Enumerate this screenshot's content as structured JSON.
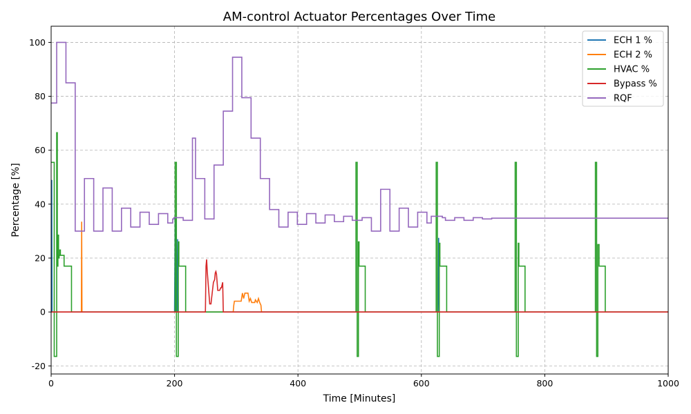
{
  "chart_data": {
    "type": "line",
    "title": "AM-control Actuator Percentages Over Time",
    "xlabel": "Time [Minutes]",
    "ylabel": "Percentage [%]",
    "xlim": [
      0,
      1000
    ],
    "ylim": [
      -23,
      106
    ],
    "x_ticks": [
      0,
      200,
      400,
      600,
      800,
      1000
    ],
    "y_ticks": [
      -20,
      0,
      20,
      40,
      60,
      80,
      100
    ],
    "grid": true,
    "legend_position": "top-right",
    "series": [
      {
        "name": "ECH 1 %",
        "color": "#1f77b4",
        "step": false,
        "points": [
          [
            0,
            0
          ],
          [
            0.5,
            0
          ],
          [
            1,
            49
          ],
          [
            1.5,
            0
          ],
          [
            2,
            0
          ],
          [
            200,
            0
          ],
          [
            201,
            35
          ],
          [
            202,
            0
          ],
          [
            204,
            0
          ],
          [
            205,
            27
          ],
          [
            206,
            0
          ],
          [
            625,
            0
          ],
          [
            627,
            0
          ],
          [
            628,
            27.5
          ],
          [
            629,
            0
          ],
          [
            1000,
            0
          ]
        ]
      },
      {
        "name": "ECH 2 %",
        "color": "#ff7f0e",
        "step": false,
        "points": [
          [
            0,
            0
          ],
          [
            49,
            0
          ],
          [
            49.5,
            33.5
          ],
          [
            50,
            0
          ],
          [
            295,
            0
          ],
          [
            296,
            2.5
          ],
          [
            297,
            4
          ],
          [
            308,
            4
          ],
          [
            310,
            7
          ],
          [
            312,
            5
          ],
          [
            314,
            7
          ],
          [
            319,
            7
          ],
          [
            321,
            4
          ],
          [
            323,
            5
          ],
          [
            325,
            3.5
          ],
          [
            330,
            3.5
          ],
          [
            331,
            4.5
          ],
          [
            334,
            3.5
          ],
          [
            336,
            5
          ],
          [
            338,
            3.5
          ],
          [
            340,
            2.5
          ],
          [
            341,
            0
          ],
          [
            1000,
            0
          ]
        ]
      },
      {
        "name": "HVAC %",
        "color": "#2ca02c",
        "step": true,
        "points": [
          [
            0,
            55.5
          ],
          [
            5,
            -16.5
          ],
          [
            9,
            66.5
          ],
          [
            10,
            17
          ],
          [
            11,
            28.5
          ],
          [
            12,
            20
          ],
          [
            13,
            21
          ],
          [
            14,
            23
          ],
          [
            15,
            21
          ],
          [
            20,
            21
          ],
          [
            21,
            17
          ],
          [
            33,
            0
          ],
          [
            200,
            0
          ],
          [
            201,
            55.5
          ],
          [
            203,
            -16.5
          ],
          [
            206,
            26
          ],
          [
            207,
            17
          ],
          [
            218,
            0
          ],
          [
            493,
            0
          ],
          [
            494,
            55.5
          ],
          [
            496,
            -16.5
          ],
          [
            498,
            26
          ],
          [
            499,
            17
          ],
          [
            509,
            0
          ],
          [
            623,
            0
          ],
          [
            624,
            55.5
          ],
          [
            626,
            -16.5
          ],
          [
            629,
            25.5
          ],
          [
            630,
            17
          ],
          [
            641,
            0
          ],
          [
            751,
            0
          ],
          [
            752,
            55.5
          ],
          [
            754,
            -16.5
          ],
          [
            757,
            25.5
          ],
          [
            758,
            17
          ],
          [
            768,
            0
          ],
          [
            881,
            0
          ],
          [
            882,
            55.5
          ],
          [
            884,
            -16.5
          ],
          [
            886,
            25
          ],
          [
            888,
            17
          ],
          [
            898,
            0
          ],
          [
            1000,
            0
          ]
        ]
      },
      {
        "name": "Bypass %",
        "color": "#d62728",
        "step": false,
        "points": [
          [
            0,
            0
          ],
          [
            250,
            0
          ],
          [
            251,
            17
          ],
          [
            252,
            19.5
          ],
          [
            253,
            15
          ],
          [
            255,
            9
          ],
          [
            257,
            3
          ],
          [
            259,
            3
          ],
          [
            261,
            7
          ],
          [
            263,
            11
          ],
          [
            265,
            12
          ],
          [
            266,
            14.5
          ],
          [
            267,
            15
          ],
          [
            268,
            14
          ],
          [
            269,
            11
          ],
          [
            270,
            8
          ],
          [
            273,
            8
          ],
          [
            275,
            9
          ],
          [
            276,
            9
          ],
          [
            277,
            10
          ],
          [
            278,
            11
          ],
          [
            279,
            0
          ],
          [
            1000,
            0
          ]
        ]
      },
      {
        "name": "RQF",
        "color": "#9467bd",
        "step": true,
        "points": [
          [
            0,
            77.5
          ],
          [
            9,
            100
          ],
          [
            24,
            85
          ],
          [
            39,
            30
          ],
          [
            54,
            49.5
          ],
          [
            69,
            30
          ],
          [
            84,
            46
          ],
          [
            99,
            30
          ],
          [
            114,
            38.5
          ],
          [
            129,
            31.5
          ],
          [
            144,
            37
          ],
          [
            159,
            32.5
          ],
          [
            174,
            36.5
          ],
          [
            189,
            33
          ],
          [
            197,
            34.5
          ],
          [
            199,
            35
          ],
          [
            214,
            34
          ],
          [
            229,
            64.5
          ],
          [
            234,
            49.5
          ],
          [
            249,
            34.5
          ],
          [
            264,
            54.5
          ],
          [
            279,
            74.5
          ],
          [
            294,
            94.5
          ],
          [
            309,
            79.5
          ],
          [
            324,
            64.5
          ],
          [
            339,
            49.5
          ],
          [
            354,
            38
          ],
          [
            369,
            31.5
          ],
          [
            384,
            37
          ],
          [
            399,
            32.5
          ],
          [
            414,
            36.5
          ],
          [
            429,
            33
          ],
          [
            444,
            36
          ],
          [
            459,
            33.5
          ],
          [
            474,
            35.5
          ],
          [
            488,
            34
          ],
          [
            504,
            35
          ],
          [
            519,
            30
          ],
          [
            534,
            45.5
          ],
          [
            549,
            30
          ],
          [
            564,
            38.5
          ],
          [
            579,
            31.5
          ],
          [
            594,
            37
          ],
          [
            609,
            33
          ],
          [
            616,
            35.5
          ],
          [
            634,
            35
          ],
          [
            639,
            34
          ],
          [
            654,
            35
          ],
          [
            669,
            34
          ],
          [
            684,
            35
          ],
          [
            699,
            34.5
          ],
          [
            714,
            34.8
          ],
          [
            1000,
            34.8
          ]
        ]
      }
    ]
  }
}
